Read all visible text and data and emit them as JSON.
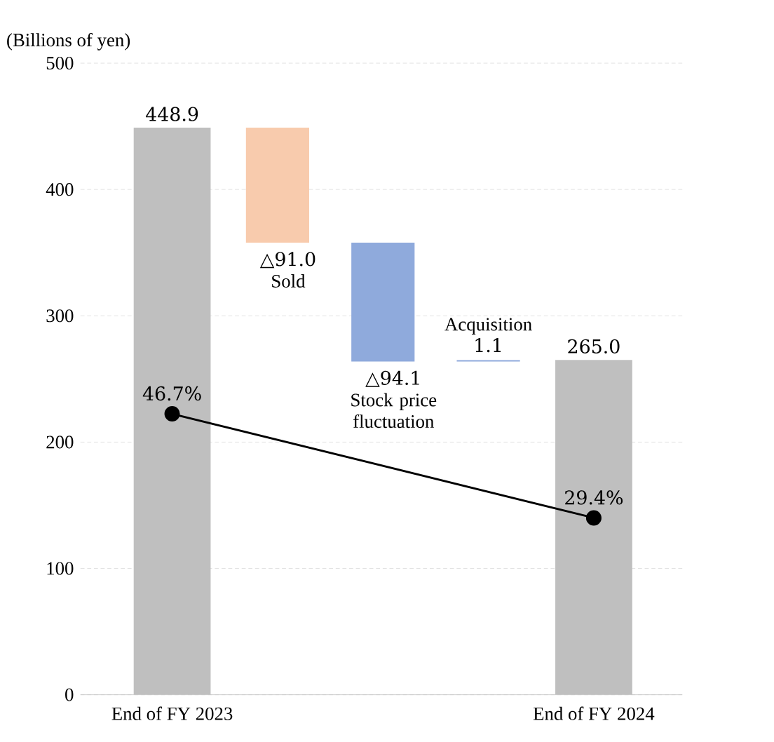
{
  "chart_data": {
    "type": "bar",
    "ylabel": "(Billions of yen)",
    "categories": [
      "End of FY 2023",
      "Sold",
      "Stock price fluctuation",
      "Acquisition",
      "End of FY 2024"
    ],
    "ylim": [
      0,
      500
    ],
    "yticks": [
      0,
      100,
      200,
      300,
      400,
      500
    ],
    "y2lim": [
      0,
      105
    ],
    "grid": "y",
    "series": [
      {
        "values": [
          448.9,
          -91.0,
          -94.1,
          1.1,
          265.0
        ],
        "base": [
          0,
          448.9,
          357.9,
          263.8,
          0
        ],
        "colors": [
          "#bfbfbf",
          "#f8cbad",
          "#8faadc",
          "#8faadc",
          "#bfbfbf"
        ],
        "value_labels": [
          "448.9",
          "△91.0",
          "△94.1",
          "1.1",
          "265.0"
        ]
      },
      {
        "type": "line",
        "axis": "y2",
        "values": [
          46.7,
          null,
          null,
          null,
          29.4
        ],
        "color": "#000000",
        "marker": "circle",
        "value_labels": [
          "46.7%",
          null,
          null,
          null,
          "29.4%"
        ]
      }
    ]
  }
}
